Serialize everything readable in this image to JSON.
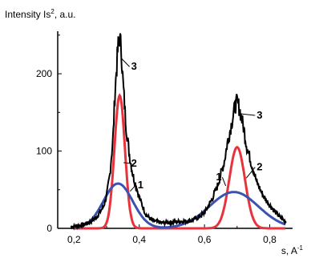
{
  "chart_data": {
    "type": "line",
    "ylabel": "Intensity Is",
    "ylabel_sup": "2",
    "ylabel_unit": ", a.u.",
    "xlabel": "s, A",
    "xlabel_sup": "-1",
    "xlim": [
      0.15,
      0.87
    ],
    "ylim": [
      0,
      255
    ],
    "x_ticks": [
      0.2,
      0.4,
      0.6,
      0.8
    ],
    "x_tick_labels": [
      "0,2",
      "0,4",
      "0,6",
      "0,8"
    ],
    "y_ticks": [
      0,
      100,
      200
    ],
    "y_tick_labels": [
      "0",
      "100",
      "200"
    ],
    "grid": false,
    "series": [
      {
        "name": "3",
        "color": "#000000",
        "x": [
          0.19,
          0.22,
          0.25,
          0.27,
          0.29,
          0.3,
          0.31,
          0.32,
          0.325,
          0.33,
          0.335,
          0.34,
          0.345,
          0.35,
          0.36,
          0.37,
          0.38,
          0.4,
          0.42,
          0.44,
          0.47,
          0.5,
          0.53,
          0.56,
          0.58,
          0.6,
          0.62,
          0.64,
          0.65,
          0.66,
          0.67,
          0.68,
          0.69,
          0.695,
          0.7,
          0.705,
          0.71,
          0.72,
          0.73,
          0.74,
          0.75,
          0.76,
          0.78,
          0.8,
          0.83,
          0.85
        ],
        "y": [
          2,
          4,
          8,
          15,
          28,
          42,
          70,
          120,
          170,
          205,
          235,
          248,
          230,
          190,
          130,
          95,
          70,
          40,
          18,
          10,
          7,
          8,
          9,
          10,
          14,
          20,
          35,
          55,
          70,
          85,
          110,
          130,
          150,
          160,
          163,
          158,
          150,
          130,
          105,
          90,
          75,
          60,
          42,
          30,
          15,
          8
        ]
      },
      {
        "name": "2",
        "color": "#e8323c",
        "peaks": [
          {
            "center": 0.34,
            "height": 172,
            "width": 0.016
          },
          {
            "center": 0.7,
            "height": 105,
            "width": 0.024
          }
        ]
      },
      {
        "name": "1",
        "color": "#3a53b0",
        "peaks": [
          {
            "center": 0.335,
            "height": 58,
            "width": 0.045
          },
          {
            "center": 0.69,
            "height": 47,
            "width": 0.075
          }
        ]
      }
    ],
    "annotations": [
      {
        "text": "3",
        "x": 0.375,
        "y": 205
      },
      {
        "text": "2",
        "x": 0.375,
        "y": 80
      },
      {
        "text": "1",
        "x": 0.395,
        "y": 52
      },
      {
        "text": "3",
        "x": 0.76,
        "y": 142
      },
      {
        "text": "2",
        "x": 0.76,
        "y": 75
      },
      {
        "text": "1",
        "x": 0.635,
        "y": 62
      }
    ]
  }
}
